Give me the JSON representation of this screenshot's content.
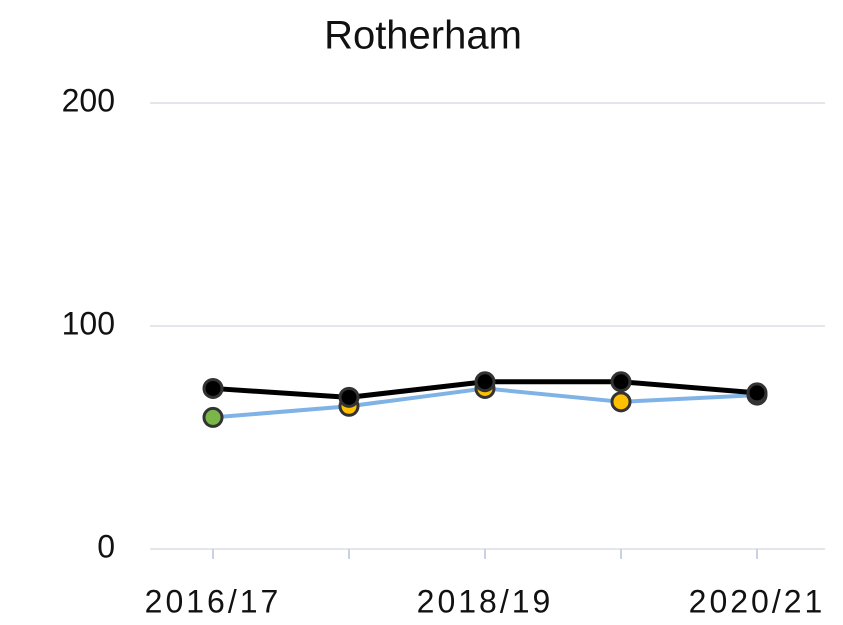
{
  "chart_data": {
    "type": "line",
    "title": "Rotherham",
    "categories": [
      "2016/17",
      null,
      "2018/19",
      null,
      "2020/21"
    ],
    "series": [
      {
        "color": "#000000",
        "marker_colors": [
          "#000000",
          "#000000",
          "#000000",
          "#000000",
          "#000000"
        ],
        "values": [
          72,
          68,
          75,
          75,
          70
        ]
      },
      {
        "color": "#7fb2e5",
        "marker_colors": [
          "#7ab648",
          "#ffc000",
          "#ffc000",
          "#ffc000",
          "#ffc000"
        ],
        "values": [
          59,
          64,
          72,
          66,
          69
        ]
      }
    ],
    "ylim": [
      0,
      200
    ],
    "yticks": [
      0,
      100,
      200
    ],
    "grid": true
  }
}
